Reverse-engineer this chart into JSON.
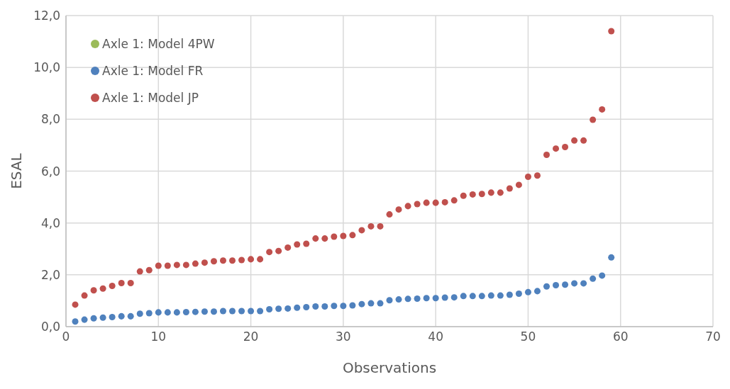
{
  "chart_data": {
    "type": "scatter",
    "xlabel": "Observations",
    "ylabel": "ESAL",
    "x": [
      1,
      2,
      3,
      4,
      5,
      6,
      7,
      8,
      9,
      10,
      11,
      12,
      13,
      14,
      15,
      16,
      17,
      18,
      19,
      20,
      21,
      22,
      23,
      24,
      25,
      26,
      27,
      28,
      29,
      30,
      31,
      32,
      33,
      34,
      35,
      36,
      37,
      38,
      39,
      40,
      41,
      42,
      43,
      44,
      45,
      46,
      47,
      48,
      49,
      50,
      51,
      52,
      53,
      54,
      55,
      56,
      57,
      58,
      59
    ],
    "series": [
      {
        "name": "Axle 1: Model 4PW",
        "color": "#9bbb59",
        "values": [
          null,
          null,
          null,
          null,
          null,
          null,
          null,
          null,
          null,
          null,
          null,
          null,
          null,
          null,
          null,
          null,
          null,
          null,
          null,
          null,
          null,
          null,
          null,
          null,
          null,
          null,
          null,
          null,
          null,
          null,
          null,
          null,
          null,
          null,
          null,
          null,
          null,
          null,
          null,
          null,
          null,
          null,
          null,
          null,
          null,
          null,
          null,
          null,
          null,
          null,
          null,
          null,
          null,
          null,
          null,
          null,
          null,
          null,
          null
        ]
      },
      {
        "name": "Axle 1: Model FR",
        "color": "#4f81bd",
        "values": [
          0.2,
          0.27,
          0.32,
          0.35,
          0.37,
          0.4,
          0.4,
          0.5,
          0.52,
          0.55,
          0.55,
          0.55,
          0.56,
          0.57,
          0.58,
          0.58,
          0.6,
          0.6,
          0.6,
          0.6,
          0.6,
          0.67,
          0.69,
          0.7,
          0.73,
          0.75,
          0.78,
          0.78,
          0.8,
          0.8,
          0.82,
          0.87,
          0.9,
          0.9,
          1.02,
          1.05,
          1.07,
          1.08,
          1.1,
          1.1,
          1.12,
          1.13,
          1.18,
          1.18,
          1.18,
          1.2,
          1.2,
          1.23,
          1.27,
          1.33,
          1.37,
          1.55,
          1.6,
          1.62,
          1.67,
          1.67,
          1.85,
          1.97,
          2.67
        ]
      },
      {
        "name": "Axle 1: Model JP",
        "color": "#c0504d",
        "values": [
          0.85,
          1.2,
          1.4,
          1.47,
          1.57,
          1.68,
          1.68,
          2.13,
          2.18,
          2.35,
          2.35,
          2.38,
          2.38,
          2.43,
          2.47,
          2.52,
          2.55,
          2.55,
          2.57,
          2.6,
          2.6,
          2.88,
          2.92,
          3.05,
          3.17,
          3.2,
          3.4,
          3.4,
          3.47,
          3.5,
          3.53,
          3.72,
          3.87,
          3.87,
          4.33,
          4.52,
          4.65,
          4.73,
          4.78,
          4.78,
          4.8,
          4.87,
          5.05,
          5.1,
          5.12,
          5.17,
          5.17,
          5.33,
          5.47,
          5.78,
          5.83,
          6.63,
          6.87,
          6.93,
          7.18,
          7.18,
          7.98,
          8.38,
          11.4
        ]
      }
    ],
    "xlim": [
      0,
      70
    ],
    "xticks": [
      0,
      10,
      20,
      30,
      40,
      50,
      60,
      70
    ],
    "ylim": [
      0,
      12
    ],
    "yticks": [
      {
        "value": 0,
        "label": "0,0"
      },
      {
        "value": 2,
        "label": "2,0"
      },
      {
        "value": 4,
        "label": "4,0"
      },
      {
        "value": 6,
        "label": "6,0"
      },
      {
        "value": 8,
        "label": "8,0"
      },
      {
        "value": 10,
        "label": "10,0"
      },
      {
        "value": 12,
        "label": "12,0"
      }
    ],
    "grid": true,
    "legend": "top left",
    "marker": "circle"
  }
}
